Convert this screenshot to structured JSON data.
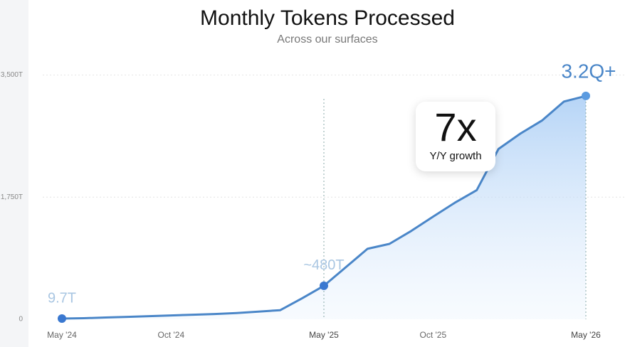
{
  "chart_data": {
    "type": "area",
    "title": "Monthly Tokens Processed",
    "subtitle": "Across our surfaces",
    "categories": [
      "May '24",
      null,
      null,
      null,
      null,
      "Oct '24",
      null,
      null,
      null,
      null,
      null,
      null,
      "May '25",
      null,
      null,
      null,
      null,
      "Oct '25",
      null,
      null,
      null,
      null,
      null,
      null,
      "May '26"
    ],
    "values": [
      9.7,
      15,
      25,
      35,
      45,
      55,
      65,
      75,
      90,
      110,
      130,
      300,
      480,
      745,
      1010,
      1080,
      1265,
      1470,
      1670,
      1850,
      2440,
      2660,
      2850,
      3120,
      3200
    ],
    "value_labels": [
      "9.7T",
      null,
      null,
      null,
      null,
      null,
      null,
      null,
      null,
      null,
      null,
      null,
      "~480T",
      null,
      null,
      null,
      null,
      null,
      null,
      null,
      null,
      null,
      null,
      null,
      "3.2Q+"
    ],
    "color": "#4a86c8",
    "ylim": [
      0,
      3780
    ],
    "yticks": [
      0,
      {
        "value": 1750,
        "label": "1,750T"
      },
      {
        "value": 3500,
        "label": "3,500T"
      }
    ],
    "grid": true,
    "annotation": {
      "value": "7x",
      "label": "Y/Y growth"
    }
  }
}
